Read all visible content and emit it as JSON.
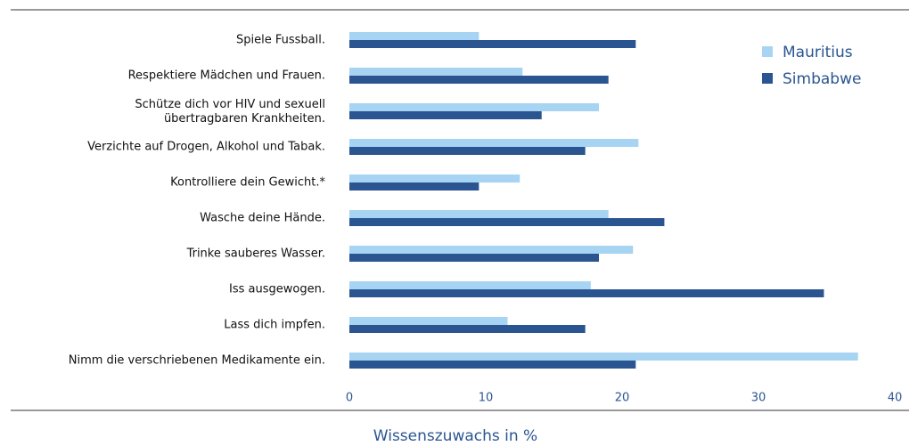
{
  "chart_data": {
    "type": "barh",
    "xlabel": "Wissenszuwachs in %",
    "categories": [
      "Spiele Fussball.",
      "Respektiere Mädchen und Frauen.",
      "Schütze dich vor HIV und sexuell\nübertragbaren Krankheiten.",
      "Verzichte auf Drogen, Alkohol und Tabak.",
      "Kontrolliere dein Gewicht.*",
      "Wasche deine Hände.",
      "Trinke sauberes Wasser.",
      "Iss ausgewogen.",
      "Lass dich impfen.",
      "Nimm die verschriebenen Medikamente ein."
    ],
    "series": [
      {
        "name": "Mauritius",
        "color": "#a6d4f2",
        "values": [
          9.5,
          12.7,
          18.3,
          21.2,
          12.5,
          19.0,
          20.8,
          17.7,
          11.6,
          37.3
        ]
      },
      {
        "name": "Simbabwe",
        "color": "#2b5591",
        "values": [
          21.0,
          19.0,
          14.1,
          17.3,
          9.5,
          23.1,
          18.3,
          34.8,
          17.3,
          21.0
        ]
      }
    ],
    "xlim": [
      0,
      40
    ],
    "xticks": [
      0,
      10,
      20,
      30,
      40
    ],
    "legend": "upper right"
  }
}
